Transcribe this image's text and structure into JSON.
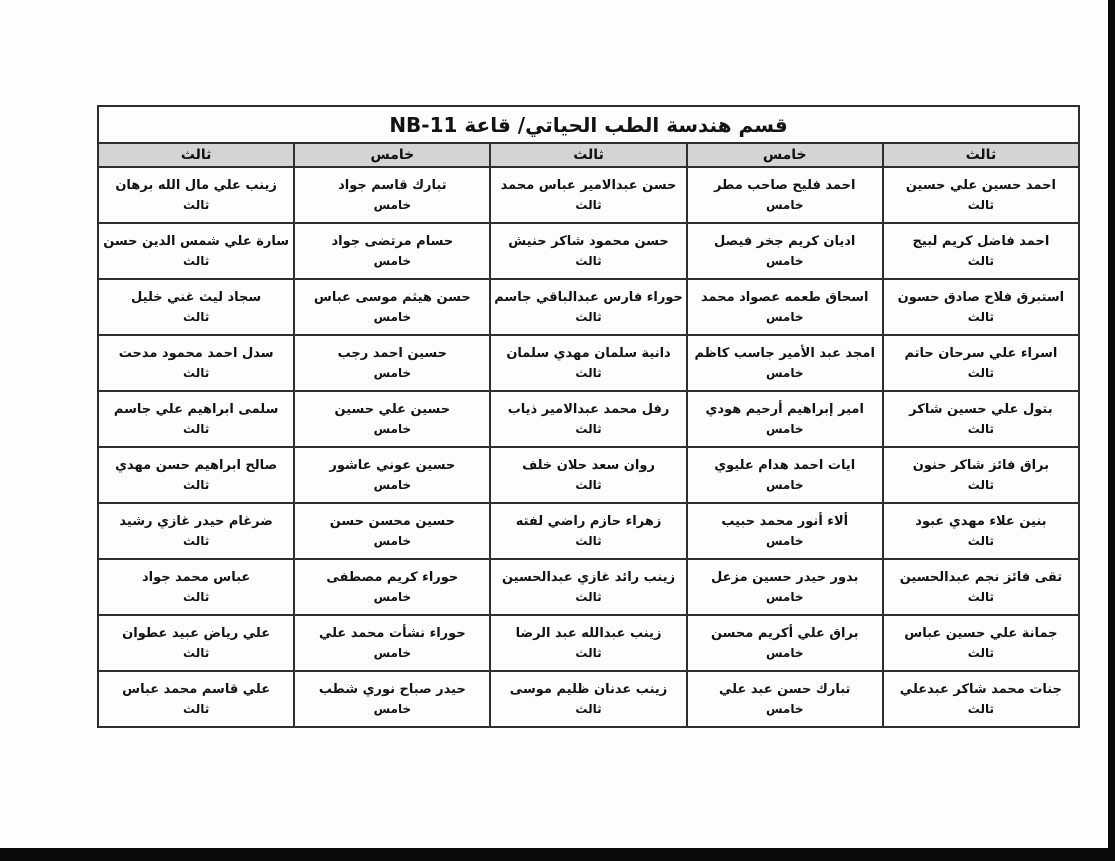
{
  "document": {
    "title": "قسم هندسة الطب الحياتي/ قاعة NB-11"
  },
  "colors": {
    "header_bg": "#d4d4d4",
    "border": "#2e2e2e",
    "scan_background": "#0a0a0a",
    "page_background": "#fdfdfd"
  },
  "table": {
    "columns": [
      {
        "header": "ثالث",
        "students": [
          {
            "name": "احمد حسين علي حسين",
            "level": "ثالث"
          },
          {
            "name": "احمد فاضل كريم لبيج",
            "level": "ثالث"
          },
          {
            "name": "استبرق فلاح صادق حسون",
            "level": "ثالث"
          },
          {
            "name": "اسراء علي سرحان حاتم",
            "level": "ثالث"
          },
          {
            "name": "بتول علي حسين شاكر",
            "level": "ثالث"
          },
          {
            "name": "براق فائز شاكر حنون",
            "level": "ثالث"
          },
          {
            "name": "بنين علاء مهدي عبود",
            "level": "ثالث"
          },
          {
            "name": "تقى فائز نجم عبدالحسين",
            "level": "ثالث"
          },
          {
            "name": "جمانة علي حسين عباس",
            "level": "ثالث"
          },
          {
            "name": "جنات محمد شاكر عبدعلي",
            "level": "ثالث"
          }
        ]
      },
      {
        "header": "خامس",
        "students": [
          {
            "name": "احمد فليح صاحب مطر",
            "level": "خامس"
          },
          {
            "name": "اديان كريم جخر فيصل",
            "level": "خامس"
          },
          {
            "name": "اسحاق طعمه عصواد محمد",
            "level": "خامس"
          },
          {
            "name": "امجد عبد الأمير جاسب كاظم",
            "level": "خامس"
          },
          {
            "name": "امير إبراهيم أرحيم هودي",
            "level": "خامس"
          },
          {
            "name": "ايات احمد هدام عليوي",
            "level": "خامس"
          },
          {
            "name": "ألاء أنور محمد حبيب",
            "level": "خامس"
          },
          {
            "name": "بدور حيدر حسين مزعل",
            "level": "خامس"
          },
          {
            "name": "براق علي أكريم محسن",
            "level": "خامس"
          },
          {
            "name": "تبارك حسن عبد علي",
            "level": "خامس"
          }
        ]
      },
      {
        "header": "ثالث",
        "students": [
          {
            "name": "حسن عبدالامير عباس محمد",
            "level": "ثالث"
          },
          {
            "name": "حسن محمود شاكر حنيش",
            "level": "ثالث"
          },
          {
            "name": "حوراء فارس عبدالباقي جاسم",
            "level": "ثالث"
          },
          {
            "name": "دانية سلمان مهدي سلمان",
            "level": "ثالث"
          },
          {
            "name": "رفل محمد عبدالامير ذياب",
            "level": "ثالث"
          },
          {
            "name": "روان سعد حلان خلف",
            "level": "ثالث"
          },
          {
            "name": "زهراء حازم راضي لفته",
            "level": "ثالث"
          },
          {
            "name": "زينب رائد غازي عبدالحسين",
            "level": "ثالث"
          },
          {
            "name": "زينب عبدالله عبد الرضا",
            "level": "ثالث"
          },
          {
            "name": "زينب عدنان ظليم موسى",
            "level": "ثالث"
          }
        ]
      },
      {
        "header": "خامس",
        "students": [
          {
            "name": "تبارك قاسم جواد",
            "level": "خامس"
          },
          {
            "name": "حسام مرتضى جواد",
            "level": "خامس"
          },
          {
            "name": "حسن هيثم موسى عباس",
            "level": "خامس"
          },
          {
            "name": "حسين احمد رجب",
            "level": "خامس"
          },
          {
            "name": "حسين علي حسين",
            "level": "خامس"
          },
          {
            "name": "حسين عوني عاشور",
            "level": "خامس"
          },
          {
            "name": "حسين محسن حسن",
            "level": "خامس"
          },
          {
            "name": "حوراء كريم مصطفى",
            "level": "خامس"
          },
          {
            "name": "حوراء نشأت محمد علي",
            "level": "خامس"
          },
          {
            "name": "حيدر صباح نوري شطب",
            "level": "خامس"
          }
        ]
      },
      {
        "header": "ثالث",
        "students": [
          {
            "name": "زينب علي مال الله برهان",
            "level": "ثالث"
          },
          {
            "name": "سارة علي شمس الدين حسن",
            "level": "ثالث"
          },
          {
            "name": "سجاد ليث غني خليل",
            "level": "ثالث"
          },
          {
            "name": "سدل احمد محمود مدحت",
            "level": "ثالث"
          },
          {
            "name": "سلمى ابراهيم علي جاسم",
            "level": "ثالث"
          },
          {
            "name": "صالح ابراهيم حسن مهدي",
            "level": "ثالث"
          },
          {
            "name": "ضرغام حيدر غازي رشيد",
            "level": "ثالث"
          },
          {
            "name": "عباس محمد جواد",
            "level": "ثالث"
          },
          {
            "name": "علي رياض عبيد عطوان",
            "level": "ثالث"
          },
          {
            "name": "علي قاسم محمد عباس",
            "level": "ثالث"
          }
        ]
      }
    ]
  }
}
